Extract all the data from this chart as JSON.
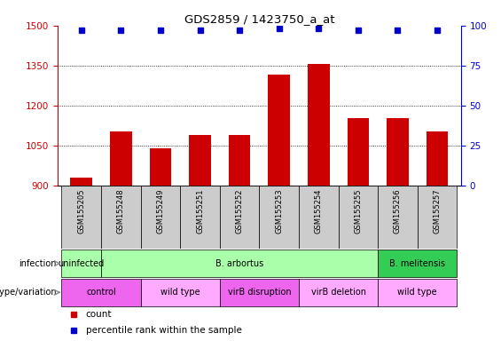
{
  "title": "GDS2859 / 1423750_a_at",
  "samples": [
    "GSM155205",
    "GSM155248",
    "GSM155249",
    "GSM155251",
    "GSM155252",
    "GSM155253",
    "GSM155254",
    "GSM155255",
    "GSM155256",
    "GSM155257"
  ],
  "counts": [
    930,
    1105,
    1042,
    1092,
    1092,
    1315,
    1358,
    1155,
    1155,
    1105
  ],
  "percentiles": [
    97,
    97,
    97,
    97,
    97,
    98,
    98,
    97,
    97,
    97
  ],
  "ylim_left": [
    900,
    1500
  ],
  "ylim_right": [
    0,
    100
  ],
  "yticks_left": [
    900,
    1050,
    1200,
    1350,
    1500
  ],
  "yticks_right": [
    0,
    25,
    50,
    75,
    100
  ],
  "infection_groups": [
    {
      "label": "uninfected",
      "start": 0,
      "end": 1,
      "color": "#aaffaa"
    },
    {
      "label": "B. arbortus",
      "start": 1,
      "end": 8,
      "color": "#aaffaa"
    },
    {
      "label": "B. melitensis",
      "start": 8,
      "end": 10,
      "color": "#33cc55"
    }
  ],
  "genotype_groups": [
    {
      "label": "control",
      "start": 0,
      "end": 2,
      "color": "#ee66ee"
    },
    {
      "label": "wild type",
      "start": 2,
      "end": 4,
      "color": "#ffaaff"
    },
    {
      "label": "virB disruption",
      "start": 4,
      "end": 6,
      "color": "#ee66ee"
    },
    {
      "label": "virB deletion",
      "start": 6,
      "end": 8,
      "color": "#ffaaff"
    },
    {
      "label": "wild type",
      "start": 8,
      "end": 10,
      "color": "#ffaaff"
    }
  ],
  "bar_color": "#cc0000",
  "dot_color": "#0000cc",
  "left_axis_color": "#cc0000",
  "right_axis_color": "#0000cc",
  "tick_area_color": "#cccccc",
  "bg_color": "#ffffff",
  "label_infection": "infection",
  "label_genotype": "genotype/variation",
  "legend_count": "count",
  "legend_pct": "percentile rank within the sample"
}
